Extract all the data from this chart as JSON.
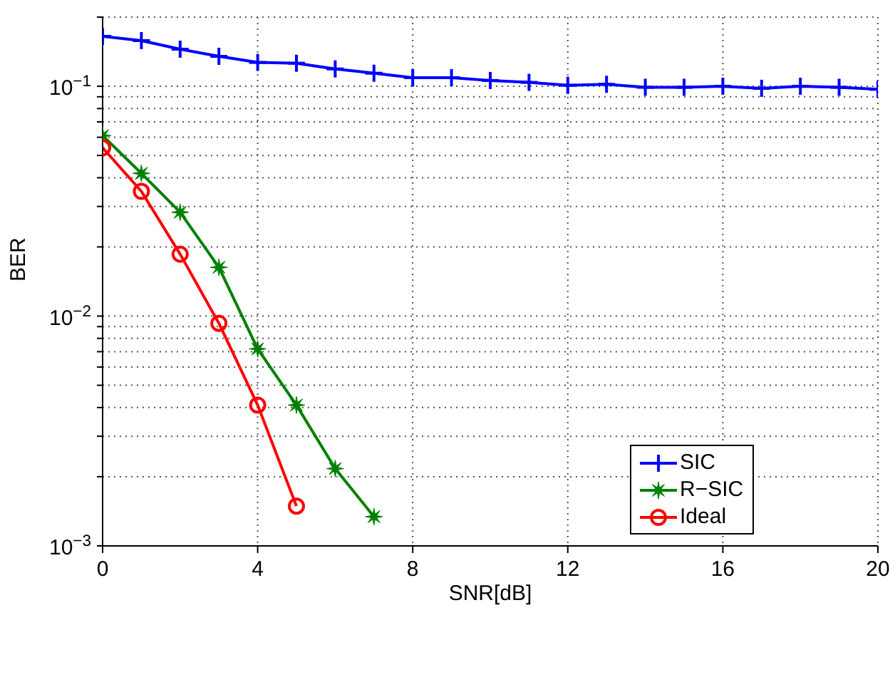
{
  "chart_data": {
    "type": "line",
    "xlabel": "SNR[dB]",
    "ylabel": "BER",
    "x": [
      0,
      1,
      2,
      3,
      4,
      5,
      6,
      7,
      8,
      9,
      10,
      11,
      12,
      13,
      14,
      15,
      16,
      17,
      18,
      19,
      20
    ],
    "series": [
      {
        "name": "SIC",
        "color": "#0000ff",
        "marker": "cross",
        "values": [
          0.165,
          0.158,
          0.145,
          0.135,
          0.127,
          0.126,
          0.119,
          0.114,
          0.109,
          0.109,
          0.106,
          0.104,
          0.101,
          0.102,
          0.099,
          0.099,
          0.1,
          0.098,
          0.1,
          0.099,
          0.097
        ]
      },
      {
        "name": "R−SIC",
        "color": "#008000",
        "marker": "star",
        "values": [
          0.061,
          0.0418,
          0.0283,
          0.0163,
          0.0072,
          0.0041,
          0.00217,
          0.00134,
          null,
          null,
          null,
          null,
          null,
          null,
          null,
          null,
          null,
          null,
          null,
          null,
          null
        ]
      },
      {
        "name": "Ideal",
        "color": "#ff0000",
        "marker": "circle",
        "values": [
          0.054,
          0.0349,
          0.0186,
          0.0093,
          0.0041,
          0.00149,
          null,
          null,
          null,
          null,
          null,
          null,
          null,
          null,
          null,
          null,
          null,
          null,
          null,
          null,
          null
        ]
      }
    ],
    "log": "y",
    "xlim": [
      0,
      20
    ],
    "xticks": [
      0,
      4,
      8,
      12,
      16,
      20
    ],
    "ylim": [
      0.001,
      0.2
    ],
    "yticks": [
      {
        "value": 0.001,
        "label": "10$^{−3}$"
      },
      {
        "value": 0.002,
        "label": null
      },
      {
        "value": 0.003,
        "label": null
      },
      {
        "value": 0.004,
        "label": null
      },
      {
        "value": 0.005,
        "label": null
      },
      {
        "value": 0.006,
        "label": null
      },
      {
        "value": 0.007,
        "label": null
      },
      {
        "value": 0.008,
        "label": null
      },
      {
        "value": 0.009,
        "label": null
      },
      {
        "value": 0.01,
        "label": "10$^{−2}$"
      },
      {
        "value": 0.02,
        "label": null
      },
      {
        "value": 0.03,
        "label": null
      },
      {
        "value": 0.04,
        "label": null
      },
      {
        "value": 0.05,
        "label": null
      },
      {
        "value": 0.06,
        "label": null
      },
      {
        "value": 0.07,
        "label": null
      },
      {
        "value": 0.08,
        "label": null
      },
      {
        "value": 0.09,
        "label": null
      },
      {
        "value": 0.1,
        "label": "10$^{−1}$"
      },
      {
        "value": 0.2,
        "label": null
      }
    ],
    "grid": true,
    "legend": "bottom right",
    "line_style": "solid"
  }
}
